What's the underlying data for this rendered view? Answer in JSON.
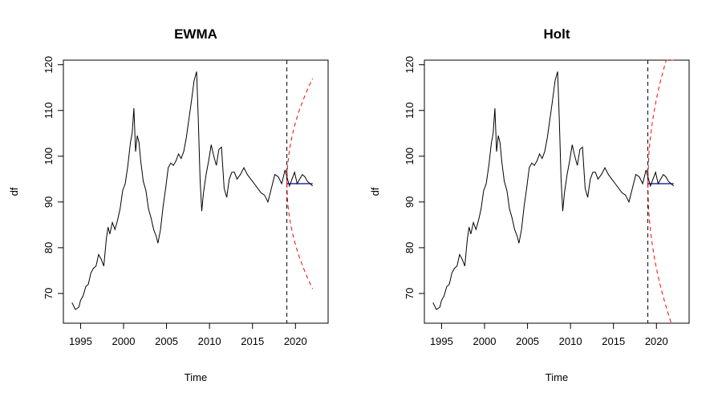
{
  "chart_data": [
    {
      "type": "line",
      "title": "EWMA",
      "xlabel": "Time",
      "ylabel": "df",
      "xlim": [
        1993.0,
        2023.8
      ],
      "ylim": [
        63.5,
        121.0
      ],
      "xticks": [
        "1995",
        "2000",
        "2005",
        "2010",
        "2015",
        "2020"
      ],
      "yticks": [
        "70",
        "80",
        "90",
        "100",
        "110",
        "120"
      ],
      "forecast_start": 2019.0,
      "forecast_end": 2022.0,
      "forecast_point": 94.0,
      "upper_end": 117.0,
      "lower_end": 71.0,
      "series": [
        {
          "color": "#000000",
          "style": "solid",
          "x": [
            1994.0,
            1994.4,
            1994.8,
            1995.0,
            1995.3,
            1995.6,
            1995.9,
            1996.2,
            1996.5,
            1996.8,
            1997.1,
            1997.4,
            1997.7,
            1998.0,
            1998.2,
            1998.4,
            1998.7,
            1999.0,
            1999.3,
            1999.6,
            1999.9,
            2000.2,
            2000.5,
            2000.8,
            2001.0,
            2001.2,
            2001.4,
            2001.6,
            2001.8,
            2002.0,
            2002.3,
            2002.6,
            2002.9,
            2003.2,
            2003.5,
            2003.8,
            2004.0,
            2004.3,
            2004.6,
            2004.9,
            2005.2,
            2005.5,
            2005.8,
            2006.1,
            2006.4,
            2006.7,
            2007.0,
            2007.3,
            2007.6,
            2007.9,
            2008.2,
            2008.5,
            2008.7,
            2008.9,
            2009.1,
            2009.3,
            2009.6,
            2009.9,
            2010.2,
            2010.5,
            2010.8,
            2011.1,
            2011.4,
            2011.7,
            2012.0,
            2012.3,
            2012.6,
            2012.9,
            2013.2,
            2013.6,
            2014.0,
            2014.4,
            2014.8,
            2015.2,
            2015.6,
            2016.0,
            2016.4,
            2016.8,
            2017.2,
            2017.6,
            2018.0,
            2018.4,
            2018.8,
            2019.0,
            2019.3,
            2019.6,
            2019.9,
            2020.2,
            2020.5,
            2020.8,
            2021.1,
            2021.4,
            2021.7,
            2022.0
          ],
          "y": [
            68.0,
            66.5,
            67.0,
            68.5,
            69.5,
            71.5,
            72.0,
            74.5,
            75.5,
            76.0,
            78.5,
            77.5,
            76.0,
            82.0,
            84.5,
            83.0,
            85.5,
            84.0,
            86.0,
            88.5,
            92.5,
            94.0,
            98.0,
            103.0,
            105.0,
            110.5,
            101.0,
            104.5,
            103.0,
            99.0,
            94.5,
            92.5,
            88.5,
            86.5,
            84.0,
            82.5,
            81.0,
            84.0,
            89.0,
            93.0,
            97.5,
            98.5,
            98.0,
            99.0,
            100.5,
            99.5,
            101.0,
            104.0,
            108.0,
            112.0,
            116.5,
            118.5,
            108.0,
            95.0,
            88.0,
            92.0,
            96.0,
            99.0,
            102.5,
            100.0,
            98.0,
            101.5,
            102.0,
            93.0,
            91.0,
            95.0,
            96.5,
            96.5,
            95.0,
            96.0,
            97.5,
            96.0,
            95.0,
            94.0,
            93.0,
            92.0,
            91.5,
            90.0,
            93.0,
            96.0,
            95.5,
            94.0,
            97.0,
            95.5,
            93.5,
            95.0,
            96.5,
            94.0,
            95.0,
            96.0,
            95.5,
            94.5,
            94.0,
            93.5
          ]
        },
        {
          "name": "",
          "color": "#00008b",
          "style": "solid"
        },
        {
          "name": "",
          "color": "#ff0000",
          "style": "dashed"
        }
      ]
    },
    {
      "type": "line",
      "title": "Holt",
      "xlabel": "Time",
      "ylabel": "df",
      "xlim": [
        1993.0,
        2023.8
      ],
      "ylim": [
        63.5,
        121.0
      ],
      "xticks": [
        "1995",
        "2000",
        "2005",
        "2010",
        "2015",
        "2020"
      ],
      "yticks": [
        "70",
        "80",
        "90",
        "100",
        "110",
        "120"
      ],
      "forecast_start": 2019.0,
      "forecast_end": 2022.0,
      "forecast_point": 94.0,
      "upper_end": 126.0,
      "lower_end": 62.0,
      "series": [
        {
          "color": "#000000",
          "style": "solid",
          "x": [
            1994.0,
            1994.4,
            1994.8,
            1995.0,
            1995.3,
            1995.6,
            1995.9,
            1996.2,
            1996.5,
            1996.8,
            1997.1,
            1997.4,
            1997.7,
            1998.0,
            1998.2,
            1998.4,
            1998.7,
            1999.0,
            1999.3,
            1999.6,
            1999.9,
            2000.2,
            2000.5,
            2000.8,
            2001.0,
            2001.2,
            2001.4,
            2001.6,
            2001.8,
            2002.0,
            2002.3,
            2002.6,
            2002.9,
            2003.2,
            2003.5,
            2003.8,
            2004.0,
            2004.3,
            2004.6,
            2004.9,
            2005.2,
            2005.5,
            2005.8,
            2006.1,
            2006.4,
            2006.7,
            2007.0,
            2007.3,
            2007.6,
            2007.9,
            2008.2,
            2008.5,
            2008.7,
            2008.9,
            2009.1,
            2009.3,
            2009.6,
            2009.9,
            2010.2,
            2010.5,
            2010.8,
            2011.1,
            2011.4,
            2011.7,
            2012.0,
            2012.3,
            2012.6,
            2012.9,
            2013.2,
            2013.6,
            2014.0,
            2014.4,
            2014.8,
            2015.2,
            2015.6,
            2016.0,
            2016.4,
            2016.8,
            2017.2,
            2017.6,
            2018.0,
            2018.4,
            2018.8,
            2019.0,
            2019.3,
            2019.6,
            2019.9,
            2020.2,
            2020.5,
            2020.8,
            2021.1,
            2021.4,
            2021.7,
            2022.0
          ],
          "y": [
            68.0,
            66.5,
            67.0,
            68.5,
            69.5,
            71.5,
            72.0,
            74.5,
            75.5,
            76.0,
            78.5,
            77.5,
            76.0,
            82.0,
            84.5,
            83.0,
            85.5,
            84.0,
            86.0,
            88.5,
            92.5,
            94.0,
            98.0,
            103.0,
            105.0,
            110.5,
            101.0,
            104.5,
            103.0,
            99.0,
            94.5,
            92.5,
            88.5,
            86.5,
            84.0,
            82.5,
            81.0,
            84.0,
            89.0,
            93.0,
            97.5,
            98.5,
            98.0,
            99.0,
            100.5,
            99.5,
            101.0,
            104.0,
            108.0,
            112.0,
            116.5,
            118.5,
            108.0,
            95.0,
            88.0,
            92.0,
            96.0,
            99.0,
            102.5,
            100.0,
            98.0,
            101.5,
            102.0,
            93.0,
            91.0,
            95.0,
            96.5,
            96.5,
            95.0,
            96.0,
            97.5,
            96.0,
            95.0,
            94.0,
            93.0,
            92.0,
            91.5,
            90.0,
            93.0,
            96.0,
            95.5,
            94.0,
            97.0,
            95.5,
            93.5,
            95.0,
            96.5,
            94.0,
            95.0,
            96.0,
            95.5,
            94.5,
            94.0,
            93.5
          ]
        },
        {
          "name": "",
          "color": "#00008b",
          "style": "solid"
        },
        {
          "name": "",
          "color": "#ff0000",
          "style": "dashed"
        }
      ]
    }
  ]
}
